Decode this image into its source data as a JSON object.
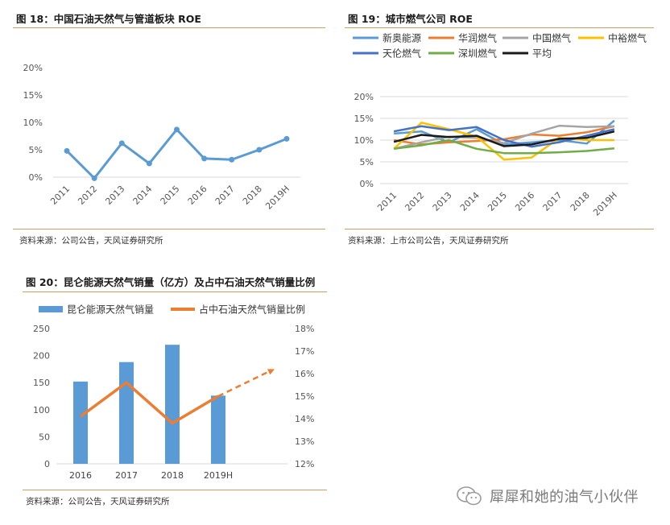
{
  "figure18": {
    "title": "图 18：中国石油天然气与管道板块 ROE",
    "source": "资料来源：公司公告，天风证券研究所"
  },
  "figure19": {
    "title": "图 19：城市燃气公司 ROE",
    "source": "资料来源：上市公司公告，天风证券研究所"
  },
  "figure20": {
    "title": "图 20：昆仑能源天然气销量（亿方）及占中石油天然气销量比例",
    "source": "资料来源：公司公告，天风证券研究所"
  },
  "watermark": {
    "text": "犀犀和她的油气小伙伴",
    "icon": "wechat-icon"
  },
  "chart_data": [
    {
      "type": "line",
      "x": [
        "2011",
        "2012",
        "2013",
        "2014",
        "2015",
        "2016",
        "2017",
        "2018",
        "2019H"
      ],
      "series": [
        {
          "values": [
            4.8,
            -0.2,
            6.2,
            2.5,
            8.7,
            3.4,
            3.2,
            5.0,
            7.0
          ],
          "color": "#5b9bd5"
        }
      ],
      "yticks": [
        "0%",
        "5%",
        "10%",
        "15%",
        "20%"
      ],
      "ylim": [
        0,
        20
      ],
      "grid": false
    },
    {
      "type": "line",
      "x": [
        "2011",
        "2012",
        "2013",
        "2014",
        "2015",
        "2016",
        "2017",
        "2018",
        "2019H"
      ],
      "series": [
        {
          "name": "新奥能源",
          "color": "#5b9bd5",
          "values": [
            11.5,
            12.0,
            9.5,
            12.5,
            9.0,
            9.5,
            10.0,
            9.2,
            14.5
          ]
        },
        {
          "name": "华润燃气",
          "color": "#ed7d31",
          "values": [
            10.0,
            9.0,
            9.5,
            9.8,
            10.2,
            11.3,
            11.0,
            11.8,
            13.2
          ]
        },
        {
          "name": "中国燃气",
          "color": "#a5a5a5",
          "values": [
            8.0,
            9.5,
            10.8,
            10.5,
            9.3,
            11.5,
            13.3,
            13.0,
            13.2
          ]
        },
        {
          "name": "中裕燃气",
          "color": "#ffc000",
          "values": [
            8.0,
            14.0,
            12.5,
            10.8,
            5.5,
            6.0,
            10.5,
            10.0,
            10.0
          ]
        },
        {
          "name": "天伦燃气",
          "color": "#4472c4",
          "values": [
            12.0,
            13.2,
            12.3,
            13.0,
            10.0,
            8.5,
            9.5,
            11.0,
            12.5
          ]
        },
        {
          "name": "深圳燃气",
          "color": "#70ad47",
          "values": [
            8.0,
            8.8,
            10.0,
            8.0,
            7.0,
            7.0,
            7.2,
            7.5,
            8.1
          ]
        },
        {
          "name": "平均",
          "color": "#1a1a1a",
          "values": [
            9.6,
            11.2,
            10.7,
            11.0,
            8.6,
            9.0,
            10.3,
            10.5,
            12.0
          ]
        }
      ],
      "yticks": [
        "0%",
        "5%",
        "10%",
        "15%",
        "20%"
      ],
      "ylim": [
        0,
        20
      ],
      "grid": true,
      "legend": "top"
    },
    {
      "type": "bar",
      "categories": [
        "2016",
        "2017",
        "2018",
        "2019H"
      ],
      "series": [
        {
          "name": "昆仑能源天然气销量",
          "color": "#5b9bd5",
          "axis": "left",
          "values": [
            152,
            188,
            220,
            126
          ]
        },
        {
          "name": "占中石油天然气销量比例",
          "color": "#ed7d31",
          "axis": "right",
          "values": [
            14.1,
            15.6,
            13.8,
            15.0
          ],
          "projection": [
            15.0,
            16.2
          ]
        }
      ],
      "yticks_left": [
        "0",
        "50",
        "100",
        "150",
        "200",
        "250"
      ],
      "ylim_left": [
        0,
        250
      ],
      "yticks_right": [
        "12%",
        "13%",
        "14%",
        "15%",
        "16%",
        "17%",
        "18%"
      ],
      "ylim_right": [
        12,
        18
      ],
      "legend": "top"
    }
  ]
}
